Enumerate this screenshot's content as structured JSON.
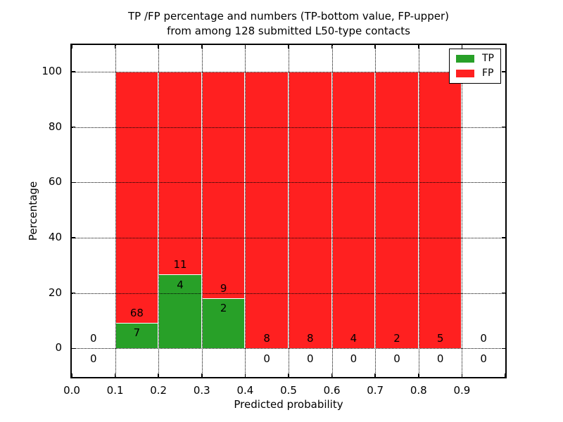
{
  "figure": {
    "title_line1": "TP /FP percentage and numbers (TP-bottom value, FP-upper)",
    "title_line2": "from among 128 submitted L50-type contacts"
  },
  "chart_data": {
    "type": "bar",
    "subtype": "stacked-percentage-histogram",
    "title": "TP /FP percentage and numbers (TP-bottom value, FP-upper)\nfrom among 128 submitted L50-type contacts",
    "xlabel": "Predicted probability",
    "ylabel": "Percentage",
    "total_submitted_contacts": 128,
    "contact_type": "L50",
    "xlim": [
      0.0,
      1.0
    ],
    "ylim": [
      -10.3,
      109.6
    ],
    "x_ticks": [
      "0.0",
      "0.1",
      "0.2",
      "0.3",
      "0.4",
      "0.5",
      "0.6",
      "0.7",
      "0.8",
      "0.9"
    ],
    "x_tick_values": [
      0.0,
      0.1,
      0.2,
      0.3,
      0.4,
      0.5,
      0.6,
      0.7,
      0.8,
      0.9
    ],
    "y_ticks": [
      0,
      20,
      40,
      60,
      80,
      100
    ],
    "grid": "dotted",
    "legend_position": "upper-right",
    "colors": {
      "tp": "#28a028",
      "fp": "#ff2020",
      "bar_edge": "#ffffff",
      "grid": "#000000"
    },
    "legend": [
      {
        "label": "TP",
        "key": "tp"
      },
      {
        "label": "FP",
        "key": "fp"
      }
    ],
    "bins": [
      {
        "x_start": 0.0,
        "x_end": 0.1,
        "tp_count": 0,
        "fp_count": 0,
        "tp_pct": 0,
        "fp_pct": 0,
        "bar": false
      },
      {
        "x_start": 0.1,
        "x_end": 0.2,
        "tp_count": 7,
        "fp_count": 68,
        "tp_pct": 9.33,
        "fp_pct": 90.67,
        "bar": true
      },
      {
        "x_start": 0.2,
        "x_end": 0.3,
        "tp_count": 4,
        "fp_count": 11,
        "tp_pct": 26.67,
        "fp_pct": 73.33,
        "bar": true
      },
      {
        "x_start": 0.3,
        "x_end": 0.4,
        "tp_count": 2,
        "fp_count": 9,
        "tp_pct": 18.18,
        "fp_pct": 81.82,
        "bar": true
      },
      {
        "x_start": 0.4,
        "x_end": 0.5,
        "tp_count": 0,
        "fp_count": 8,
        "tp_pct": 0,
        "fp_pct": 100,
        "bar": true
      },
      {
        "x_start": 0.5,
        "x_end": 0.6,
        "tp_count": 0,
        "fp_count": 8,
        "tp_pct": 0,
        "fp_pct": 100,
        "bar": true
      },
      {
        "x_start": 0.6,
        "x_end": 0.7,
        "tp_count": 0,
        "fp_count": 4,
        "tp_pct": 0,
        "fp_pct": 100,
        "bar": true
      },
      {
        "x_start": 0.7,
        "x_end": 0.8,
        "tp_count": 0,
        "fp_count": 2,
        "tp_pct": 0,
        "fp_pct": 100,
        "bar": true
      },
      {
        "x_start": 0.8,
        "x_end": 0.9,
        "tp_count": 0,
        "fp_count": 5,
        "tp_pct": 0,
        "fp_pct": 100,
        "bar": true
      },
      {
        "x_start": 0.9,
        "x_end": 1.0,
        "tp_count": 0,
        "fp_count": 0,
        "tp_pct": 0,
        "fp_pct": 0,
        "bar": false
      }
    ]
  }
}
